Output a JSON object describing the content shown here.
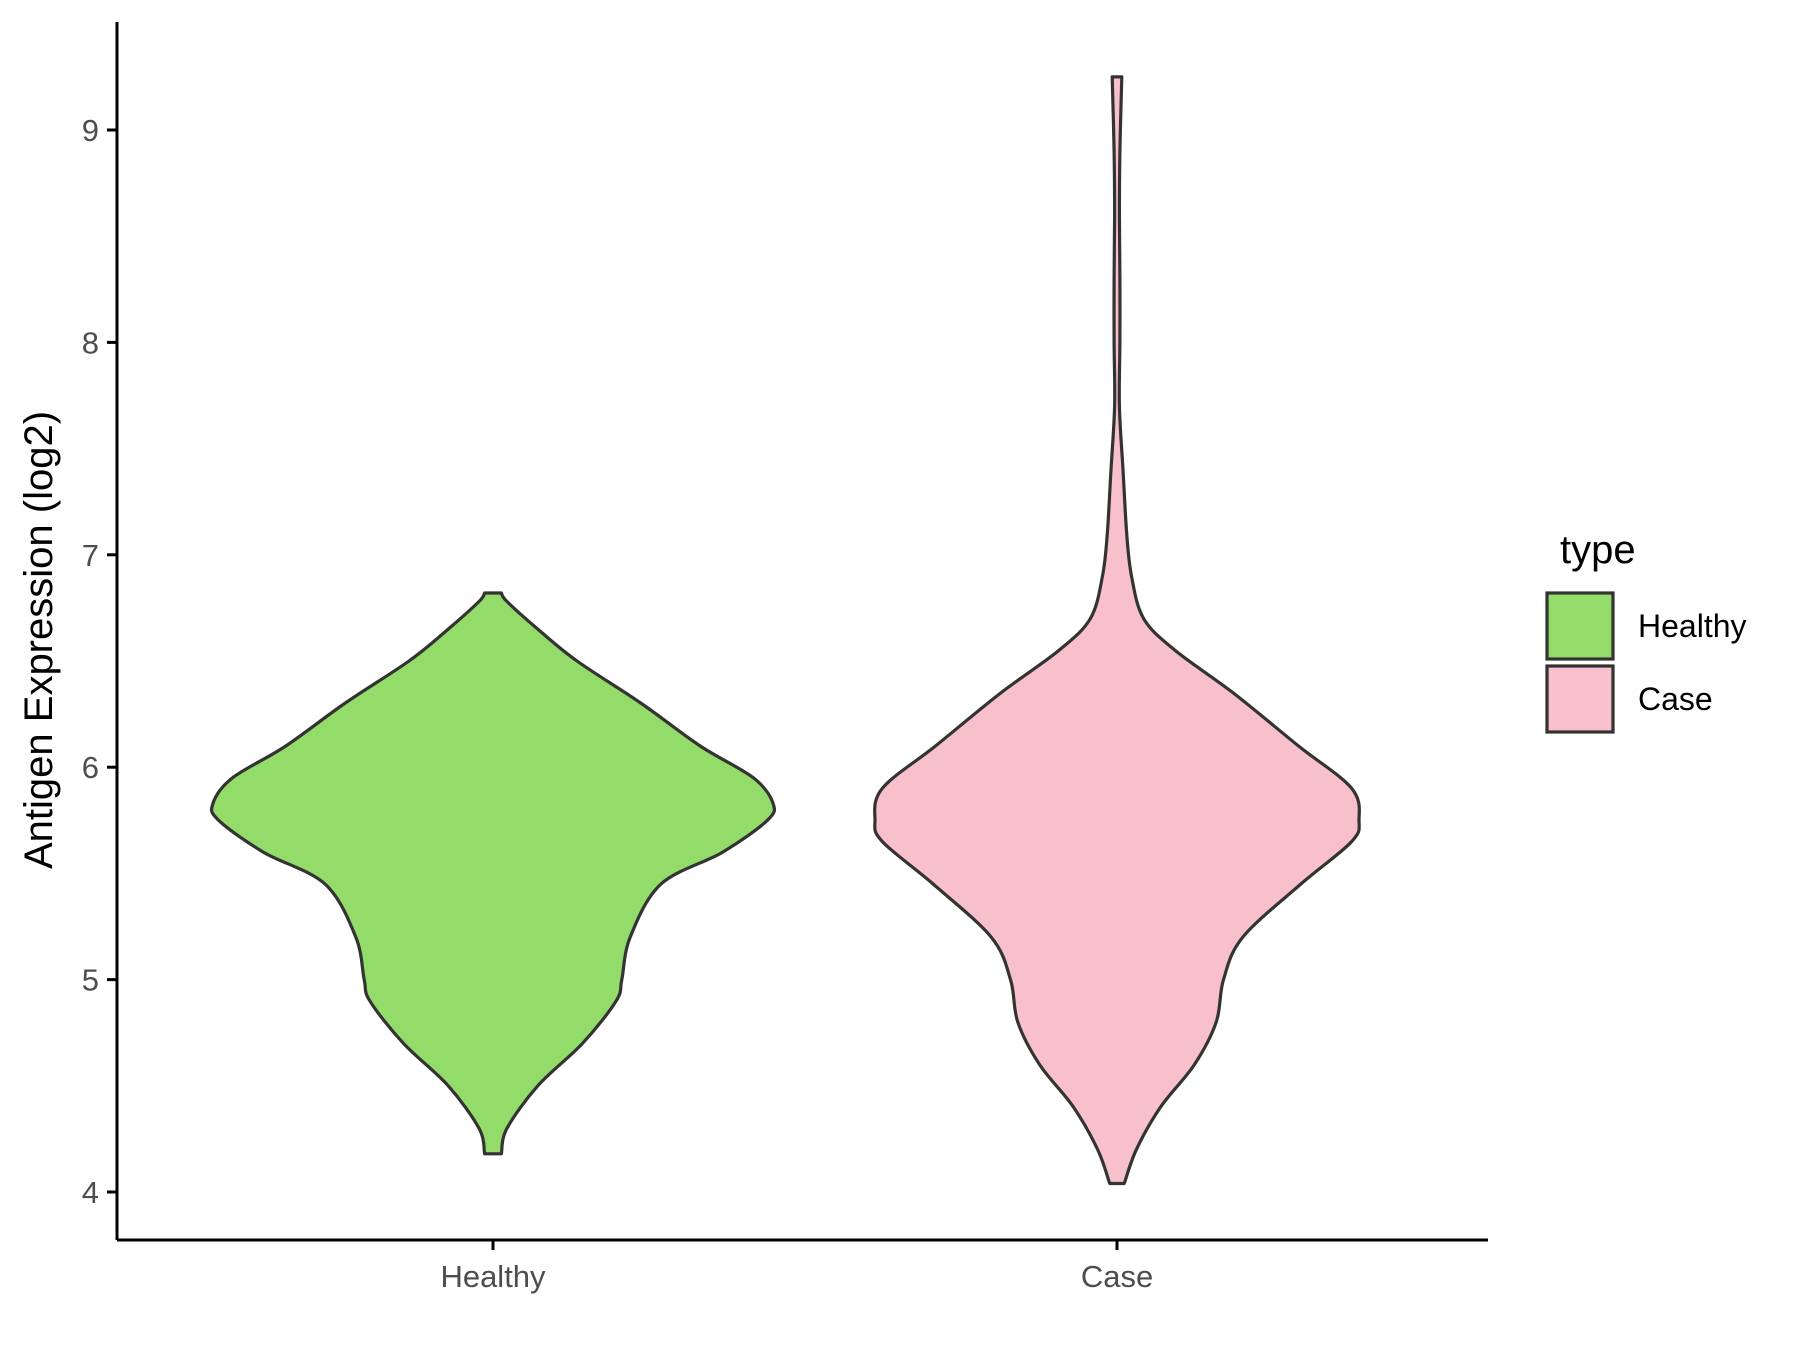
{
  "chart_data": {
    "type": "violin",
    "xlabel": "",
    "ylabel": "Antigen Expression (log2)",
    "categories": [
      "Healthy",
      "Case"
    ],
    "ylim": [
      3.95,
      9.5
    ],
    "yticks": [
      4,
      5,
      6,
      7,
      8,
      9
    ],
    "grid": false,
    "legend": {
      "title": "type",
      "position": "right",
      "entries": [
        {
          "label": "Healthy",
          "color": "#93DC6A"
        },
        {
          "label": "Case",
          "color": "#F8C0CB"
        }
      ]
    },
    "outline_color": "#333333",
    "series": [
      {
        "name": "Healthy",
        "color": "#93DC6A",
        "density_profile": [
          [
            4.18,
            0.03
          ],
          [
            4.3,
            0.05
          ],
          [
            4.5,
            0.16
          ],
          [
            4.7,
            0.32
          ],
          [
            4.9,
            0.44
          ],
          [
            5.0,
            0.46
          ],
          [
            5.2,
            0.49
          ],
          [
            5.45,
            0.6
          ],
          [
            5.6,
            0.82
          ],
          [
            5.75,
            0.98
          ],
          [
            5.83,
            1.0
          ],
          [
            5.95,
            0.93
          ],
          [
            6.1,
            0.74
          ],
          [
            6.3,
            0.53
          ],
          [
            6.5,
            0.3
          ],
          [
            6.65,
            0.16
          ],
          [
            6.78,
            0.05
          ],
          [
            6.82,
            0.03
          ]
        ]
      },
      {
        "name": "Case",
        "color": "#F8C0CB",
        "density_profile": [
          [
            4.04,
            0.03
          ],
          [
            4.2,
            0.08
          ],
          [
            4.4,
            0.18
          ],
          [
            4.6,
            0.32
          ],
          [
            4.8,
            0.41
          ],
          [
            5.0,
            0.44
          ],
          [
            5.2,
            0.52
          ],
          [
            5.45,
            0.76
          ],
          [
            5.65,
            0.97
          ],
          [
            5.75,
            1.0
          ],
          [
            5.9,
            0.97
          ],
          [
            6.1,
            0.75
          ],
          [
            6.35,
            0.48
          ],
          [
            6.55,
            0.24
          ],
          [
            6.7,
            0.11
          ],
          [
            6.9,
            0.06
          ],
          [
            7.1,
            0.04
          ],
          [
            7.4,
            0.025
          ],
          [
            7.7,
            0.01
          ],
          [
            8.0,
            0.012
          ],
          [
            8.3,
            0.012
          ],
          [
            8.6,
            0.01
          ],
          [
            8.9,
            0.012
          ],
          [
            9.25,
            0.02
          ]
        ]
      }
    ]
  }
}
